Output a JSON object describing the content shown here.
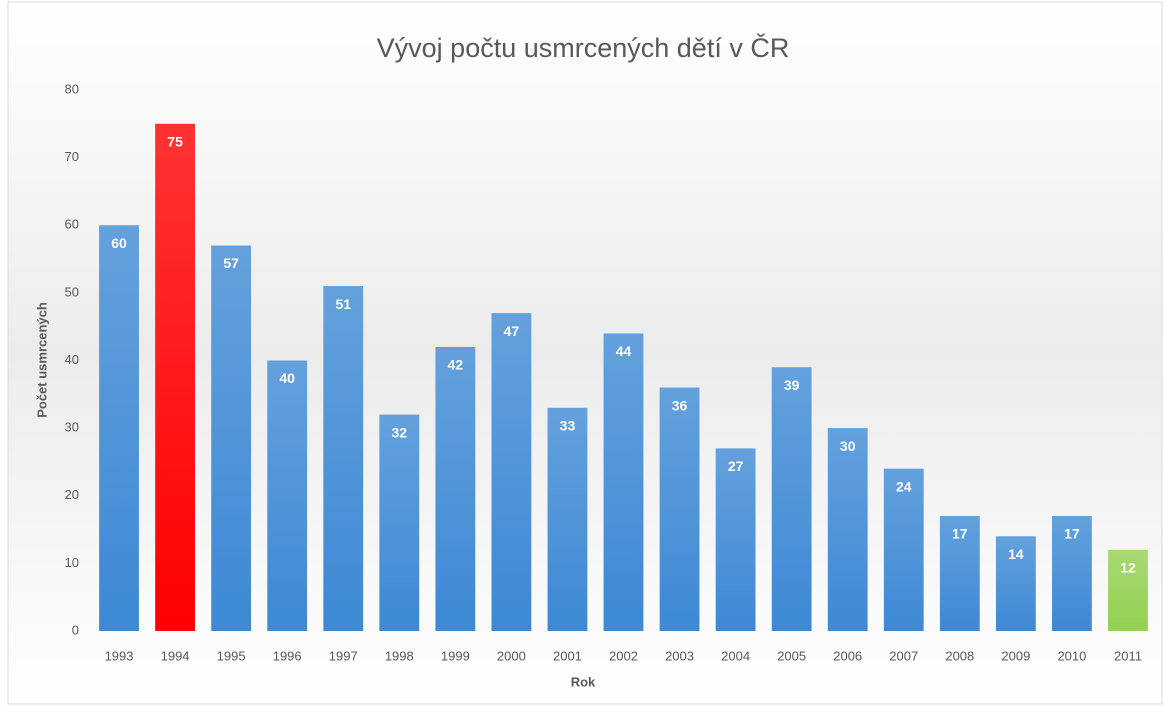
{
  "chart_data": {
    "type": "bar",
    "title": "Vývoj počtu usmrcených dětí v ČR",
    "x_label": "Rok",
    "y_label": "Počet usmrcených",
    "categories": [
      "1993",
      "1994",
      "1995",
      "1996",
      "1997",
      "1998",
      "1999",
      "2000",
      "2001",
      "2002",
      "2003",
      "2004",
      "2005",
      "2006",
      "2007",
      "2008",
      "2009",
      "2010",
      "2011"
    ],
    "values": [
      60,
      75,
      57,
      40,
      51,
      32,
      42,
      47,
      33,
      44,
      36,
      27,
      39,
      30,
      24,
      17,
      14,
      17,
      12
    ],
    "colors": [
      "#3d89d4",
      "#ff0000",
      "#3d89d4",
      "#3d89d4",
      "#3d89d4",
      "#3d89d4",
      "#3d89d4",
      "#3d89d4",
      "#3d89d4",
      "#3d89d4",
      "#3d89d4",
      "#3d89d4",
      "#3d89d4",
      "#3d89d4",
      "#3d89d4",
      "#3d89d4",
      "#3d89d4",
      "#3d89d4",
      "#92d050"
    ],
    "ylim": [
      0,
      80
    ],
    "yticks": [
      0,
      10,
      20,
      30,
      40,
      50,
      60,
      70,
      80
    ],
    "grid": false,
    "data_labels": true
  }
}
